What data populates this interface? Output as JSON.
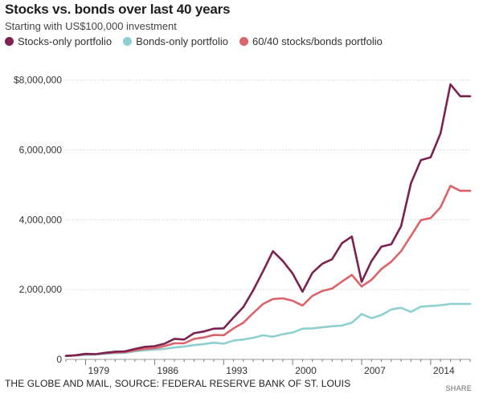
{
  "header": {
    "title": "Stocks vs. bonds over last 40 years",
    "subtitle": "Starting with US$100,000 investment"
  },
  "footer": {
    "source": "THE GLOBE AND MAIL, SOURCE: FEDERAL RESERVE BANK OF ST. LOUIS",
    "share_label": "SHARE"
  },
  "chart_data": {
    "type": "line",
    "title": "Stocks vs. bonds over last 40 years",
    "subtitle": "Starting with US$100,000 investment",
    "xlabel": "",
    "ylabel": "",
    "xlim": [
      1977,
      2018
    ],
    "ylim": [
      0,
      8500000
    ],
    "grid": "horizontal",
    "legend_position": "top-left",
    "x_ticks": [
      {
        "value": 1979,
        "label": "1979"
      },
      {
        "value": 1986,
        "label": "1986"
      },
      {
        "value": 1993,
        "label": "1993"
      },
      {
        "value": 2000,
        "label": "2000"
      },
      {
        "value": 2007,
        "label": "2007"
      },
      {
        "value": 2014,
        "label": "2014"
      }
    ],
    "y_ticks": [
      {
        "value": 0,
        "label": "0"
      },
      {
        "value": 2000000,
        "label": "2,000,000"
      },
      {
        "value": 4000000,
        "label": "4,000,000"
      },
      {
        "value": 6000000,
        "label": "6,000,000"
      },
      {
        "value": 8000000,
        "label": "$8,000,000"
      }
    ],
    "x": [
      1977,
      1978,
      1979,
      1980,
      1981,
      1982,
      1983,
      1984,
      1985,
      1986,
      1987,
      1988,
      1989,
      1990,
      1991,
      1992,
      1993,
      1994,
      1995,
      1996,
      1997,
      1998,
      1999,
      2000,
      2001,
      2002,
      2003,
      2004,
      2005,
      2006,
      2007,
      2008,
      2009,
      2010,
      2011,
      2012,
      2013,
      2014,
      2015,
      2016,
      2017,
      2018
    ],
    "series": [
      {
        "name": "Stocks-only portfolio",
        "color": "#7b2250",
        "values": [
          100000,
          120000,
          160000,
          150000,
          190000,
          220000,
          230000,
          300000,
          360000,
          380000,
          450000,
          590000,
          570000,
          750000,
          800000,
          880000,
          890000,
          1200000,
          1500000,
          1980000,
          2530000,
          3100000,
          2820000,
          2460000,
          1940000,
          2480000,
          2740000,
          2870000,
          3330000,
          3520000,
          2220000,
          2820000,
          3230000,
          3300000,
          3820000,
          5050000,
          5710000,
          5790000,
          6480000,
          7880000,
          7540000,
          7540000
        ]
      },
      {
        "name": "Bonds-only portfolio",
        "color": "#8ecfd1",
        "values": [
          100000,
          110000,
          130000,
          140000,
          160000,
          180000,
          190000,
          230000,
          260000,
          280000,
          300000,
          340000,
          370000,
          410000,
          440000,
          480000,
          450000,
          540000,
          570000,
          620000,
          690000,
          650000,
          720000,
          770000,
          880000,
          890000,
          920000,
          950000,
          970000,
          1050000,
          1300000,
          1180000,
          1270000,
          1430000,
          1480000,
          1360000,
          1510000,
          1530000,
          1550000,
          1590000,
          1590000,
          1590000
        ]
      },
      {
        "name": "60/40 stocks/bonds portfolio",
        "color": "#d9646a",
        "values": [
          100000,
          115000,
          150000,
          150000,
          180000,
          200000,
          210000,
          260000,
          300000,
          320000,
          380000,
          460000,
          460000,
          590000,
          630000,
          700000,
          690000,
          890000,
          1050000,
          1330000,
          1590000,
          1730000,
          1750000,
          1680000,
          1540000,
          1820000,
          1960000,
          2030000,
          2230000,
          2420000,
          2090000,
          2280000,
          2590000,
          2800000,
          3100000,
          3540000,
          3990000,
          4050000,
          4360000,
          4970000,
          4830000,
          4830000
        ]
      }
    ]
  }
}
